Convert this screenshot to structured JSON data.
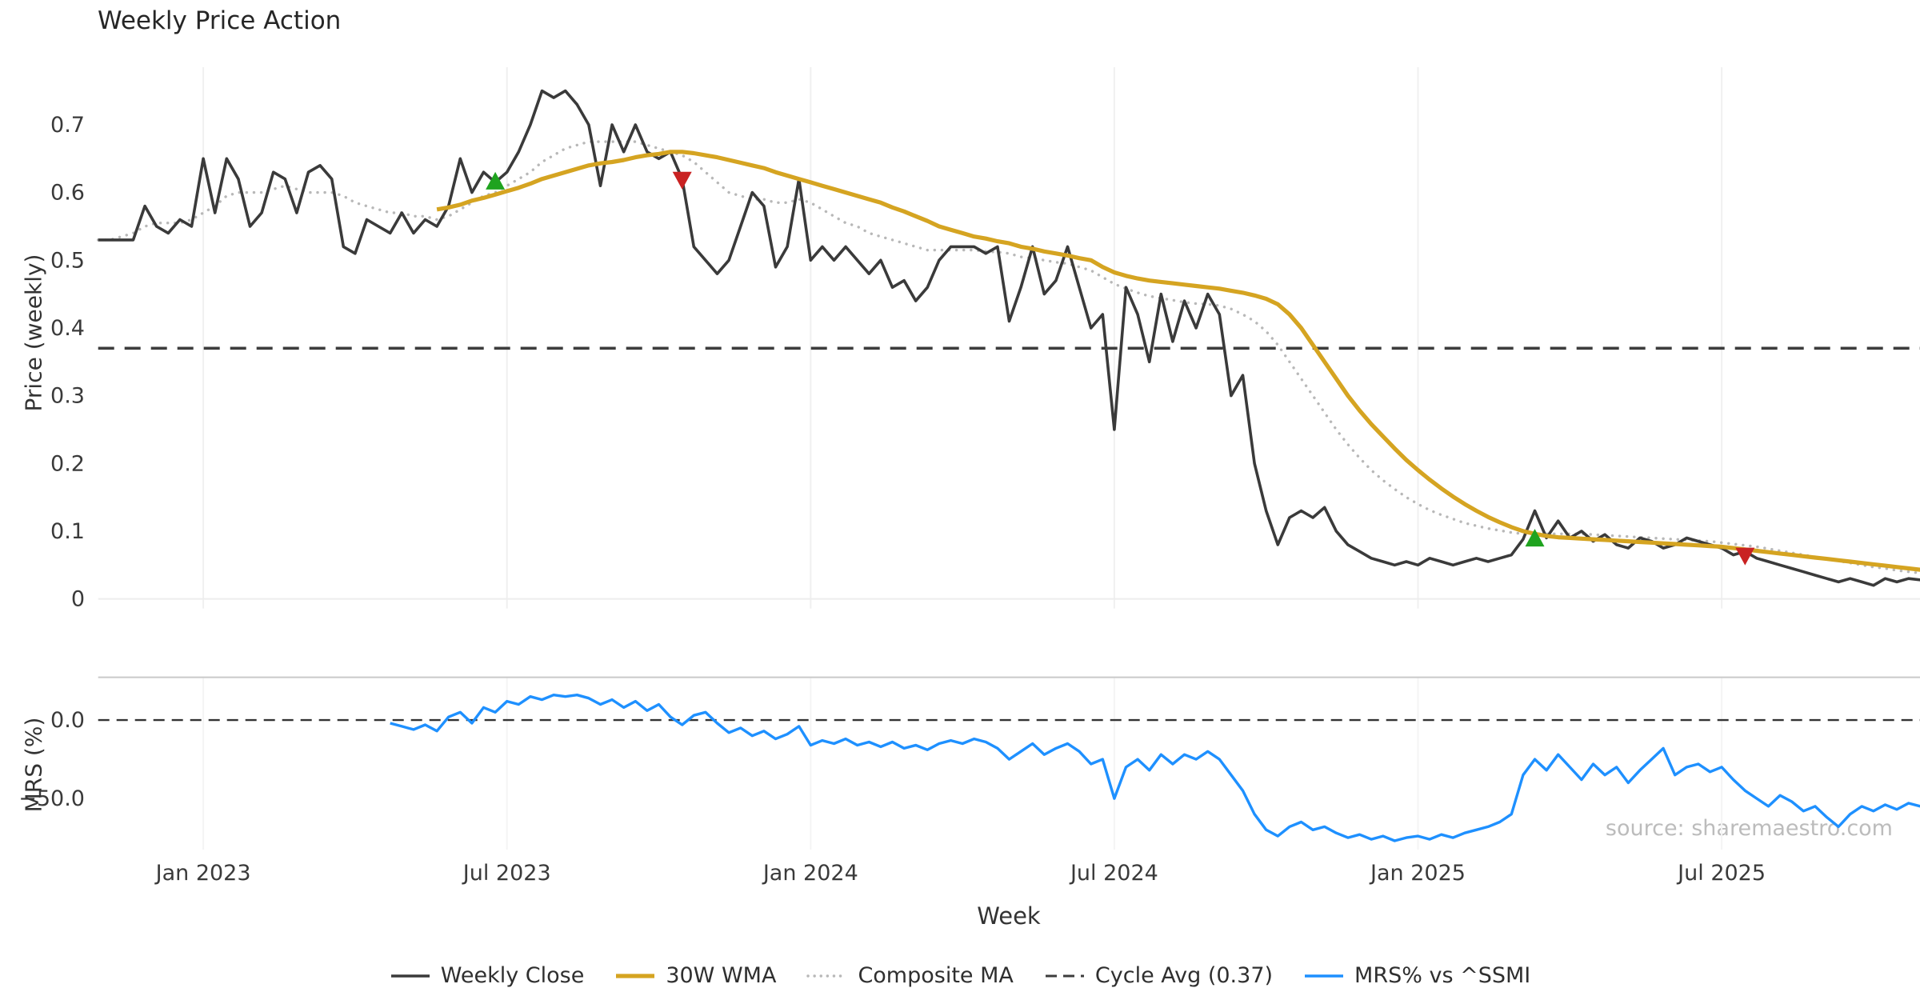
{
  "title": "Weekly Price Action",
  "source_note": "source: sharemaestro.com",
  "colors": {
    "weekly_close": "#3a3a3a",
    "wma_30": "#d5a421",
    "composite_ma": "#b8b8b8",
    "cycle_avg": "#3d3d3d",
    "mrs": "#1e90ff",
    "buy": "#1fa31f",
    "sell": "#c92222",
    "grid": "#f0f0f0",
    "tick_text": "#3a3a3a"
  },
  "chart_data": [
    {
      "type": "line",
      "panel": "price",
      "title": "Weekly Price Action",
      "xlabel": "Week",
      "ylabel": "Price (weekly)",
      "ylim": [
        -0.015,
        0.785
      ],
      "x_unit": "week_index",
      "xlim_weeks": [
        0,
        156
      ],
      "grid": "faint vertical at xticks",
      "legend_position": "bottom center, outside axes",
      "xticks": [
        {
          "week": 9,
          "label": "Jan 2023"
        },
        {
          "week": 35,
          "label": "Jul 2023"
        },
        {
          "week": 61,
          "label": "Jan 2024"
        },
        {
          "week": 87,
          "label": "Jul 2024"
        },
        {
          "week": 113,
          "label": "Jan 2025"
        },
        {
          "week": 139,
          "label": "Jul 2025"
        }
      ],
      "yticks": [
        {
          "value": 0,
          "label": "0"
        },
        {
          "value": 0.1,
          "label": "0.1"
        },
        {
          "value": 0.2,
          "label": "0.2"
        },
        {
          "value": 0.3,
          "label": "0.3"
        },
        {
          "value": 0.4,
          "label": "0.4"
        },
        {
          "value": 0.5,
          "label": "0.5"
        },
        {
          "value": 0.6,
          "label": "0.6"
        },
        {
          "value": 0.7,
          "label": "0.7"
        }
      ],
      "hline": {
        "name": "Cycle Avg (0.37)",
        "value": 0.37,
        "style": "dashed",
        "color": "#3d3d3d"
      },
      "markers": [
        {
          "type": "buy",
          "week": 34,
          "price": 0.615
        },
        {
          "type": "sell",
          "week": 50,
          "price": 0.62
        },
        {
          "type": "buy",
          "week": 123,
          "price": 0.088
        },
        {
          "type": "sell",
          "week": 141,
          "price": 0.065
        }
      ],
      "series": [
        {
          "name": "Weekly Close",
          "color": "#3a3a3a",
          "style": "solid",
          "start_week": 0,
          "values": [
            0.53,
            0.53,
            0.53,
            0.53,
            0.58,
            0.55,
            0.54,
            0.56,
            0.55,
            0.65,
            0.57,
            0.65,
            0.62,
            0.55,
            0.57,
            0.63,
            0.62,
            0.57,
            0.63,
            0.64,
            0.62,
            0.52,
            0.51,
            0.56,
            0.55,
            0.54,
            0.57,
            0.54,
            0.56,
            0.55,
            0.58,
            0.65,
            0.6,
            0.63,
            0.615,
            0.63,
            0.66,
            0.7,
            0.75,
            0.74,
            0.75,
            0.73,
            0.7,
            0.61,
            0.7,
            0.66,
            0.7,
            0.66,
            0.65,
            0.66,
            0.62,
            0.52,
            0.5,
            0.48,
            0.5,
            0.55,
            0.6,
            0.58,
            0.49,
            0.52,
            0.62,
            0.5,
            0.52,
            0.5,
            0.52,
            0.5,
            0.48,
            0.5,
            0.46,
            0.47,
            0.44,
            0.46,
            0.5,
            0.52,
            0.52,
            0.52,
            0.51,
            0.52,
            0.41,
            0.46,
            0.52,
            0.45,
            0.47,
            0.52,
            0.46,
            0.4,
            0.42,
            0.25,
            0.46,
            0.42,
            0.35,
            0.45,
            0.38,
            0.44,
            0.4,
            0.45,
            0.42,
            0.3,
            0.33,
            0.2,
            0.13,
            0.08,
            0.12,
            0.13,
            0.12,
            0.135,
            0.1,
            0.08,
            0.07,
            0.06,
            0.055,
            0.05,
            0.055,
            0.05,
            0.06,
            0.055,
            0.05,
            0.055,
            0.06,
            0.055,
            0.06,
            0.065,
            0.088,
            0.13,
            0.09,
            0.115,
            0.09,
            0.1,
            0.085,
            0.095,
            0.08,
            0.075,
            0.09,
            0.085,
            0.075,
            0.08,
            0.09,
            0.085,
            0.08,
            0.075,
            0.065,
            0.07,
            0.06,
            0.055,
            0.05,
            0.045,
            0.04,
            0.035,
            0.03,
            0.025,
            0.03,
            0.025,
            0.02,
            0.03,
            0.025,
            0.03,
            0.028
          ]
        },
        {
          "name": "30W WMA",
          "color": "#d5a421",
          "style": "solid",
          "start_week": 29,
          "values": [
            0.575,
            0.578,
            0.582,
            0.588,
            0.592,
            0.597,
            0.602,
            0.607,
            0.613,
            0.62,
            0.625,
            0.63,
            0.635,
            0.64,
            0.643,
            0.645,
            0.648,
            0.652,
            0.655,
            0.657,
            0.66,
            0.66,
            0.658,
            0.655,
            0.652,
            0.648,
            0.644,
            0.64,
            0.636,
            0.63,
            0.625,
            0.62,
            0.615,
            0.61,
            0.605,
            0.6,
            0.595,
            0.59,
            0.585,
            0.578,
            0.572,
            0.565,
            0.558,
            0.55,
            0.545,
            0.54,
            0.535,
            0.532,
            0.528,
            0.525,
            0.52,
            0.517,
            0.513,
            0.51,
            0.507,
            0.503,
            0.5,
            0.49,
            0.482,
            0.477,
            0.473,
            0.47,
            0.468,
            0.466,
            0.464,
            0.462,
            0.46,
            0.458,
            0.455,
            0.452,
            0.448,
            0.443,
            0.435,
            0.42,
            0.4,
            0.375,
            0.35,
            0.325,
            0.3,
            0.278,
            0.258,
            0.24,
            0.222,
            0.205,
            0.19,
            0.176,
            0.163,
            0.151,
            0.14,
            0.13,
            0.121,
            0.113,
            0.106,
            0.1,
            0.096,
            0.093,
            0.091,
            0.09,
            0.089,
            0.088,
            0.087,
            0.086,
            0.085,
            0.084,
            0.083,
            0.082,
            0.081,
            0.08,
            0.079,
            0.078,
            0.077,
            0.075,
            0.073,
            0.071,
            0.069,
            0.067,
            0.065,
            0.063,
            0.061,
            0.059,
            0.057,
            0.055,
            0.053,
            0.051,
            0.049,
            0.047,
            0.045,
            0.043
          ]
        },
        {
          "name": "Composite MA",
          "color": "#b8b8b8",
          "style": "dotted",
          "start_week": 0,
          "values": [
            0.53,
            0.53,
            0.535,
            0.54,
            0.55,
            0.555,
            0.555,
            0.555,
            0.56,
            0.57,
            0.58,
            0.595,
            0.6,
            0.6,
            0.6,
            0.605,
            0.61,
            0.605,
            0.6,
            0.6,
            0.6,
            0.595,
            0.585,
            0.58,
            0.575,
            0.57,
            0.57,
            0.565,
            0.565,
            0.56,
            0.565,
            0.575,
            0.585,
            0.595,
            0.6,
            0.61,
            0.62,
            0.63,
            0.645,
            0.655,
            0.665,
            0.67,
            0.675,
            0.675,
            0.675,
            0.675,
            0.675,
            0.67,
            0.665,
            0.66,
            0.655,
            0.645,
            0.63,
            0.615,
            0.6,
            0.595,
            0.59,
            0.59,
            0.585,
            0.585,
            0.59,
            0.585,
            0.575,
            0.565,
            0.555,
            0.55,
            0.54,
            0.535,
            0.53,
            0.525,
            0.52,
            0.515,
            0.515,
            0.515,
            0.515,
            0.515,
            0.513,
            0.512,
            0.51,
            0.505,
            0.503,
            0.5,
            0.497,
            0.495,
            0.49,
            0.485,
            0.475,
            0.465,
            0.458,
            0.452,
            0.447,
            0.444,
            0.441,
            0.438,
            0.436,
            0.435,
            0.433,
            0.428,
            0.42,
            0.41,
            0.395,
            0.375,
            0.35,
            0.325,
            0.3,
            0.275,
            0.25,
            0.228,
            0.208,
            0.19,
            0.175,
            0.162,
            0.15,
            0.14,
            0.131,
            0.124,
            0.118,
            0.112,
            0.108,
            0.104,
            0.101,
            0.098,
            0.096,
            0.096,
            0.096,
            0.096,
            0.096,
            0.096,
            0.095,
            0.094,
            0.093,
            0.092,
            0.091,
            0.09,
            0.089,
            0.088,
            0.087,
            0.086,
            0.085,
            0.083,
            0.081,
            0.079,
            0.077,
            0.074,
            0.071,
            0.068,
            0.065,
            0.062,
            0.059,
            0.056,
            0.053,
            0.05,
            0.047,
            0.045,
            0.042,
            0.04,
            0.038
          ]
        }
      ]
    },
    {
      "type": "line",
      "panel": "mrs",
      "xlabel": "Week",
      "ylabel": "MRS (%)",
      "ylim": [
        -88,
        27
      ],
      "yticks": [
        {
          "value": 0,
          "label": "0.0"
        },
        {
          "value": -50,
          "label": "−50.0"
        }
      ],
      "hline": {
        "name": "zero line",
        "value": 0,
        "style": "dashed",
        "color": "#333333"
      },
      "series": [
        {
          "name": "MRS% vs ^SSMI",
          "color": "#1e90ff",
          "style": "solid",
          "start_week": 25,
          "values": [
            -2,
            -4,
            -6,
            -3,
            -7,
            2,
            5,
            -2,
            8,
            5,
            12,
            10,
            15,
            13,
            16,
            15,
            16,
            14,
            10,
            13,
            8,
            12,
            6,
            10,
            2,
            -3,
            3,
            5,
            -2,
            -8,
            -5,
            -10,
            -7,
            -12,
            -9,
            -4,
            -16,
            -13,
            -15,
            -12,
            -16,
            -14,
            -17,
            -14,
            -18,
            -16,
            -19,
            -15,
            -13,
            -15,
            -12,
            -14,
            -18,
            -25,
            -20,
            -15,
            -22,
            -18,
            -15,
            -20,
            -28,
            -25,
            -50,
            -30,
            -25,
            -32,
            -22,
            -28,
            -22,
            -25,
            -20,
            -25,
            -35,
            -45,
            -60,
            -70,
            -74,
            -68,
            -65,
            -70,
            -68,
            -72,
            -75,
            -73,
            -76,
            -74,
            -77,
            -75,
            -74,
            -76,
            -73,
            -75,
            -72,
            -70,
            -68,
            -65,
            -60,
            -35,
            -25,
            -32,
            -22,
            -30,
            -38,
            -28,
            -35,
            -30,
            -40,
            -32,
            -25,
            -18,
            -35,
            -30,
            -28,
            -33,
            -30,
            -38,
            -45,
            -50,
            -55,
            -48,
            -52,
            -58,
            -55,
            -62,
            -68,
            -60,
            -55,
            -58,
            -54,
            -57,
            -53,
            -55
          ]
        }
      ]
    }
  ],
  "legend": [
    {
      "key": "weekly-close",
      "label": "Weekly Close",
      "color": "#3a3a3a",
      "dash": "solid",
      "width": 3.6
    },
    {
      "key": "wma",
      "label": "30W WMA",
      "color": "#d5a421",
      "dash": "solid",
      "width": 5.2
    },
    {
      "key": "composite",
      "label": "Composite MA",
      "color": "#b8b8b8",
      "dash": "dotted",
      "width": 3.4
    },
    {
      "key": "cycle-avg",
      "label": "Cycle Avg (0.37)",
      "color": "#3d3d3d",
      "dash": "dashed",
      "width": 3.0
    },
    {
      "key": "mrs",
      "label": "MRS% vs ^SSMI",
      "color": "#1e90ff",
      "dash": "solid",
      "width": 3.6
    }
  ]
}
